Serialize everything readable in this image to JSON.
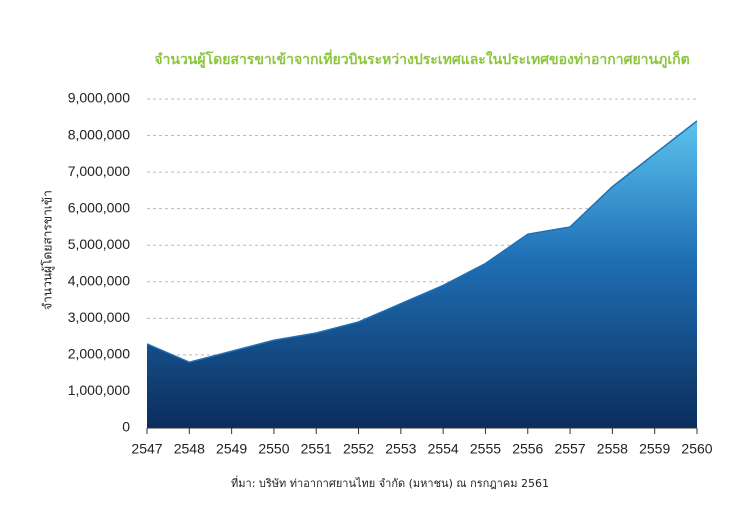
{
  "chart_data": {
    "type": "area",
    "title": "จำนวนผู้โดยสารขาเข้าจากเที่ยวบินระหว่างประเทศและในประเทศของท่าอากาศยานภูเก็ต",
    "y_label": "จำนวนผู้โดยสารขาเข้า",
    "source": "ที่มา:  บริษัท ท่าอากาศยานไทย จำกัด (มหาชน) ณ กรกฎาคม 2561",
    "x": [
      2547,
      2548,
      2549,
      2550,
      2551,
      2552,
      2553,
      2554,
      2555,
      2556,
      2557,
      2558,
      2559,
      2560
    ],
    "values": [
      2300000,
      1800000,
      2100000,
      2400000,
      2600000,
      2900000,
      3400000,
      3900000,
      4500000,
      5300000,
      5500000,
      6600000,
      7500000,
      8400000
    ],
    "color": "#1f6fb5",
    "xlim": [
      2547,
      2560
    ],
    "xticks": [
      2547,
      2548,
      2549,
      2550,
      2551,
      2552,
      2553,
      2554,
      2555,
      2556,
      2557,
      2558,
      2559,
      2560
    ],
    "ylim": [
      0,
      9000000
    ],
    "yticks": [
      0,
      {
        "value": 1000000,
        "label": "1,000,000"
      },
      {
        "value": 2000000,
        "label": "2,000,000"
      },
      {
        "value": 3000000,
        "label": "3,000,000"
      },
      {
        "value": 4000000,
        "label": "4,000,000"
      },
      {
        "value": 5000000,
        "label": "5,000,000"
      },
      {
        "value": 6000000,
        "label": "6,000,000"
      },
      {
        "value": 7000000,
        "label": "7,000,000"
      },
      {
        "value": 8000000,
        "label": "8,000,000"
      },
      {
        "value": 9000000,
        "label": "9,000,000"
      }
    ],
    "grid": true
  }
}
